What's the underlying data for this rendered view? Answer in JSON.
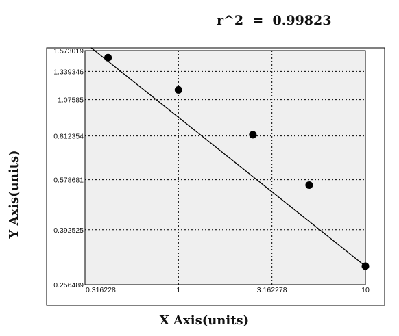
{
  "chart_data": {
    "type": "scatter",
    "annotation": "r^2  =  0.99823",
    "xlabel": "X Axis(units)",
    "ylabel": "Y Axis(units)",
    "x_scale": "log",
    "y_scale": "log",
    "xlim": [
      0.316228,
      10
    ],
    "ylim": [
      0.256489,
      1.573019
    ],
    "x_ticks": [
      "0.316228",
      "1",
      "3.162278",
      "10"
    ],
    "y_ticks": [
      "1.573019",
      "1.339346",
      "1.07585",
      "0.812354",
      "0.578681",
      "0.392525",
      "0.256489"
    ],
    "y_tick_values": [
      1.573019,
      1.339346,
      1.07585,
      0.812354,
      0.578681,
      0.392525,
      0.256489
    ],
    "grid": true,
    "points": [
      {
        "x": 0.42,
        "y": 1.49
      },
      {
        "x": 1.0,
        "y": 1.16
      },
      {
        "x": 2.5,
        "y": 0.82
      },
      {
        "x": 5.0,
        "y": 0.555
      },
      {
        "x": 10.0,
        "y": 0.296
      }
    ],
    "fit_line": {
      "x": [
        0.34,
        10.0
      ],
      "y": [
        1.61,
        0.296
      ]
    }
  },
  "colors": {
    "plot_background": "#efefef",
    "axes": "#000000",
    "grid": "#000000",
    "marker": "#000000"
  }
}
